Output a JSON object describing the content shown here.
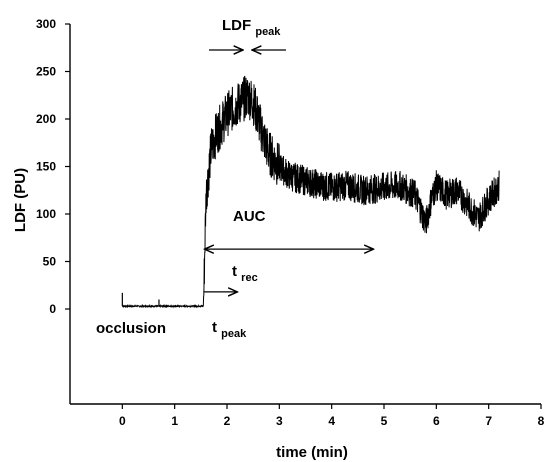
{
  "chart_data": {
    "type": "line",
    "title": "",
    "xlabel": "time (min)",
    "ylabel": "LDF (PU)",
    "xlim": [
      -1,
      8
    ],
    "ylim": [
      -100,
      300
    ],
    "x_ticks": [
      0,
      1,
      2,
      3,
      4,
      5,
      6,
      7,
      8
    ],
    "y_ticks": [
      0,
      50,
      100,
      150,
      200,
      250,
      300
    ],
    "grid": false,
    "legend": "none",
    "line_color": "#000000",
    "series": [
      {
        "x": [
          0,
          0.3,
          0.7,
          1.0,
          1.3,
          1.55,
          1.6,
          1.7,
          1.8,
          1.9,
          2.0,
          2.1,
          2.2,
          2.3,
          2.4,
          2.5,
          2.6,
          2.7,
          2.8,
          3.0,
          3.2,
          3.5,
          3.8,
          4.0,
          4.3,
          4.6,
          5.0,
          5.3,
          5.6,
          5.8,
          5.9,
          6.0,
          6.2,
          6.4,
          6.6,
          6.8,
          7.0,
          7.2
        ],
        "y": [
          3,
          3,
          3,
          3,
          3,
          3,
          120,
          170,
          185,
          195,
          205,
          210,
          215,
          220,
          225,
          218,
          200,
          180,
          165,
          150,
          140,
          135,
          130,
          128,
          130,
          125,
          128,
          130,
          120,
          90,
          115,
          130,
          120,
          125,
          110,
          95,
          115,
          130
        ]
      }
    ],
    "annotations": {
      "occlusion": "occlusion",
      "auc": "AUC",
      "ldf_peak": {
        "main": "LDF",
        "sub": "peak"
      },
      "t_rec": {
        "main": "t",
        "sub": "rec"
      },
      "t_peak": {
        "main": "t",
        "sub": "peak"
      }
    }
  }
}
